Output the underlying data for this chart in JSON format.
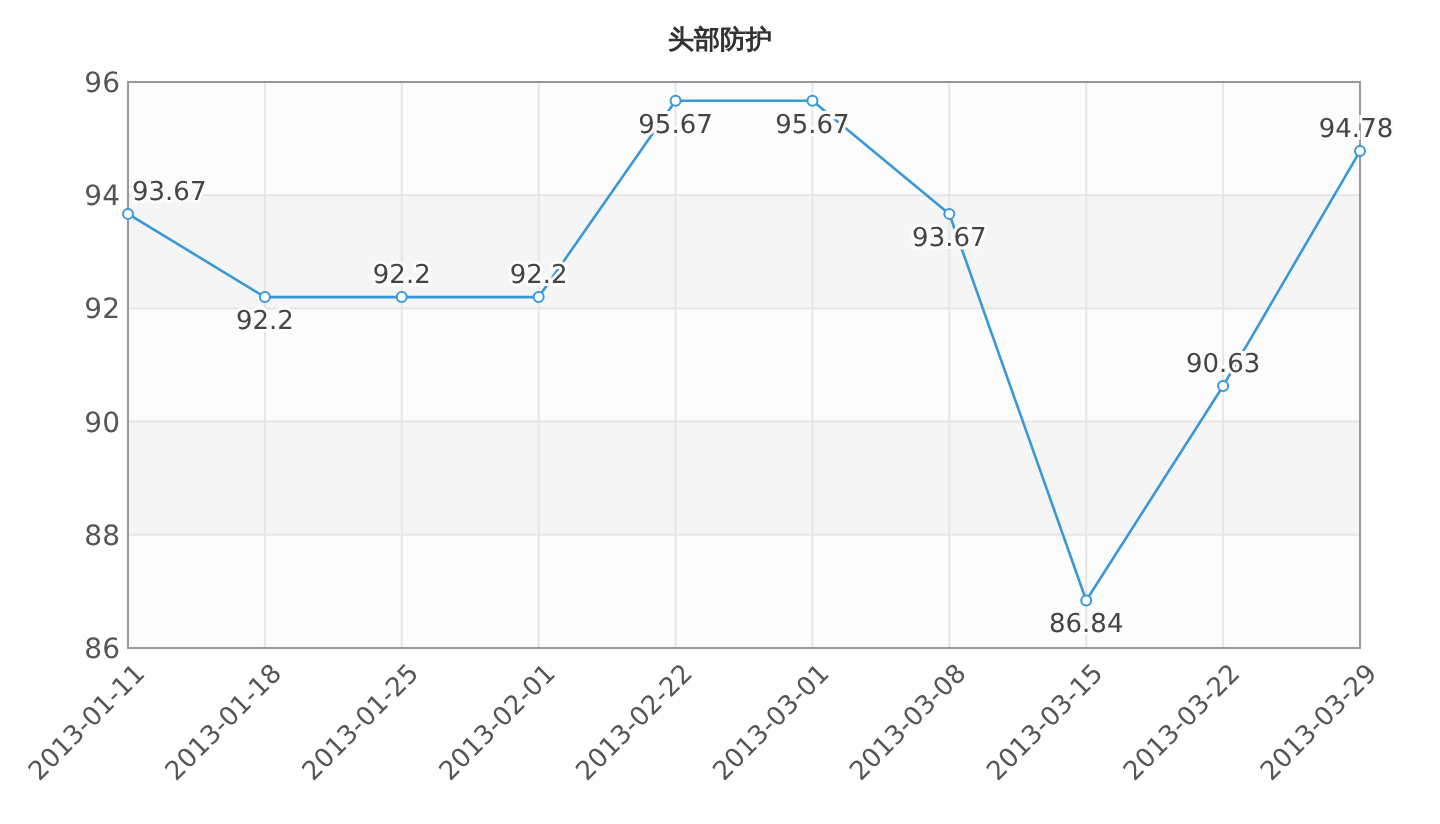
{
  "chart_data": {
    "type": "line",
    "title": "头部防护",
    "categories": [
      "2013-01-11",
      "2013-01-18",
      "2013-01-25",
      "2013-02-01",
      "2013-02-22",
      "2013-03-01",
      "2013-03-08",
      "2013-03-15",
      "2013-03-22",
      "2013-03-29"
    ],
    "series": [
      {
        "color": "#3a98d8",
        "values": [
          93.67,
          92.2,
          92.2,
          92.2,
          95.67,
          95.67,
          93.67,
          86.84,
          90.63,
          94.78
        ]
      }
    ],
    "ylim": [
      86,
      96
    ],
    "yticks": [
      86,
      88,
      90,
      92,
      94,
      96
    ],
    "grid": true,
    "marker": "circle",
    "line_style": "solid",
    "data_labels": true
  }
}
